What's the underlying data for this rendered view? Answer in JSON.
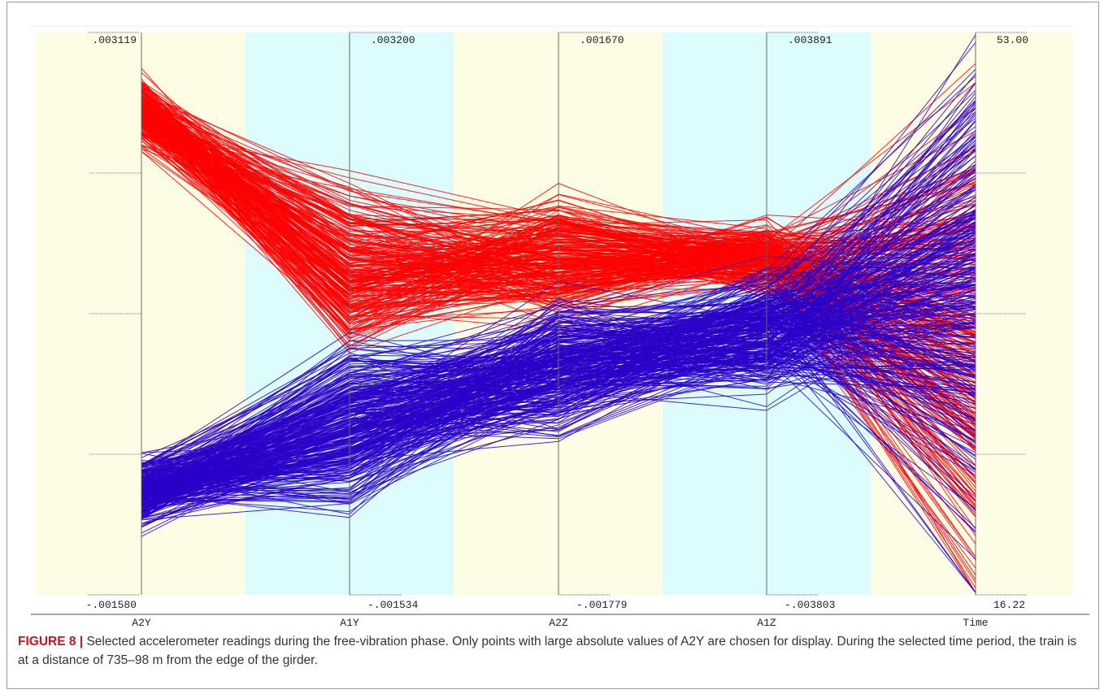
{
  "chart_data": {
    "type": "parallel-coordinates",
    "axes": [
      {
        "name": "A2Y",
        "max": ".003119",
        "min": "-.001580"
      },
      {
        "name": "A1Y",
        "max": ".003200",
        "min": "-.001534"
      },
      {
        "name": "A2Z",
        "max": ".001670",
        "min": "-.001779"
      },
      {
        "name": "A1Z",
        "max": ".003891",
        "min": "-.003803"
      },
      {
        "name": "Time",
        "max": "53.00",
        "min": "16.22"
      }
    ],
    "series": [
      {
        "color": "#ff0000"
      },
      {
        "color": "#2a00c8"
      }
    ],
    "band_colors": [
      "#fdfde6",
      "#dcfcfe"
    ],
    "grid": false
  },
  "caption": {
    "label": "FIGURE 8 |",
    "text": "Selected accelerometer readings during the free-vibration phase. Only points with large absolute values of A2Y are chosen for display. During the selected time period, the train is at a distance of 735–98 m from the edge of the girder."
  }
}
